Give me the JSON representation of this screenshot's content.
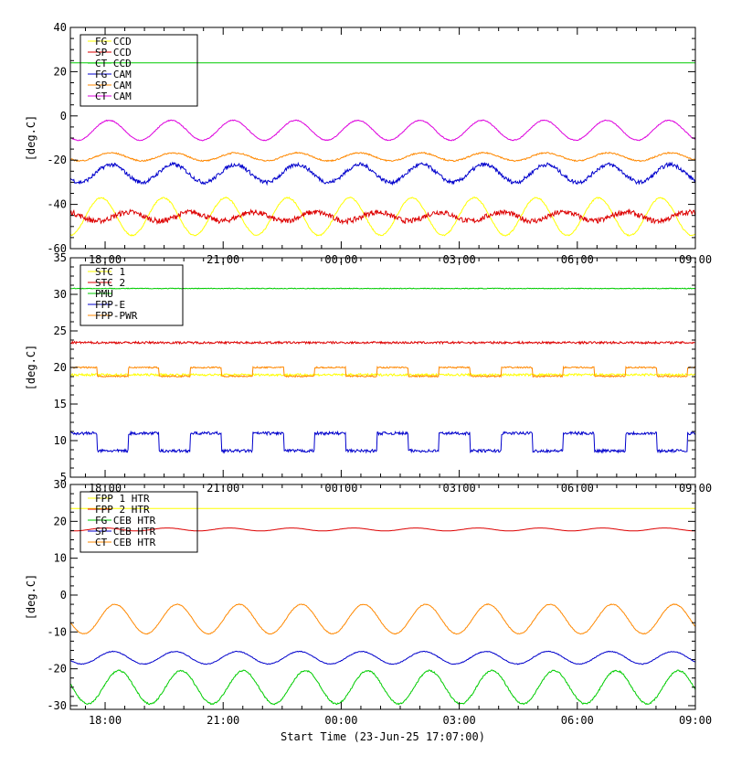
{
  "chart_data": [
    {
      "type": "line",
      "panel": "top",
      "ylabel": "[deg.C]",
      "ylim": [
        -60,
        40
      ],
      "y_ticks": [
        -60,
        -40,
        -20,
        0,
        20,
        40
      ],
      "y_tick_labels": [
        "-60",
        "-40",
        "-20",
        "0",
        "20",
        "40"
      ],
      "x_tick_labels": [
        "18:00",
        "21:00",
        "00:00",
        "03:00",
        "06:00",
        "09:00"
      ],
      "xlim_hours": [
        17.117,
        33.0
      ],
      "x_tick_hours": [
        18,
        21,
        24,
        27,
        30,
        33
      ],
      "grid": false,
      "legend_position": "top-left",
      "legend": [
        "FG CCD",
        "SP CCD",
        "CT CCD",
        "FG CAM",
        "SP CAM",
        "CT CAM"
      ],
      "series": [
        {
          "name": "FG CCD",
          "color": "#ffff00",
          "kind": "sine",
          "center": -45.5,
          "amplitude": 8.5,
          "period_hours": 1.58,
          "phase_hours": 17.9,
          "noise": 0.3
        },
        {
          "name": "SP CCD",
          "color": "#dd0000",
          "kind": "sine",
          "center": -45.5,
          "amplitude": 2.0,
          "period_hours": 1.58,
          "phase_hours": 18.6,
          "noise": 1.2
        },
        {
          "name": "CT CCD",
          "color": "#00cc00",
          "kind": "flat",
          "center": 24.0,
          "amplitude": 0,
          "period_hours": 1.58,
          "phase_hours": 0,
          "noise": 0
        },
        {
          "name": "FG CAM",
          "color": "#0000cc",
          "kind": "sine",
          "center": -26.0,
          "amplitude": 4.0,
          "period_hours": 1.58,
          "phase_hours": 18.15,
          "noise": 0.9
        },
        {
          "name": "SP CAM",
          "color": "#ff8800",
          "kind": "sine",
          "center": -18.5,
          "amplitude": 1.8,
          "period_hours": 1.58,
          "phase_hours": 18.15,
          "noise": 0.3
        },
        {
          "name": "CT CAM",
          "color": "#dd00dd",
          "kind": "sine",
          "center": -6.5,
          "amplitude": 4.5,
          "period_hours": 1.58,
          "phase_hours": 18.1,
          "noise": 0.2
        }
      ]
    },
    {
      "type": "line",
      "panel": "middle",
      "ylabel": "[deg.C]",
      "ylim": [
        5,
        35
      ],
      "y_ticks": [
        5,
        10,
        15,
        20,
        25,
        30,
        35
      ],
      "y_tick_labels": [
        "5",
        "10",
        "15",
        "20",
        "25",
        "30",
        "35"
      ],
      "x_tick_labels": [
        "18:00",
        "21:00",
        "00:00",
        "03:00",
        "06:00",
        "09:00"
      ],
      "xlim_hours": [
        17.117,
        33.0
      ],
      "x_tick_hours": [
        18,
        21,
        24,
        27,
        30,
        33
      ],
      "grid": false,
      "legend_position": "top-left",
      "legend": [
        "STC 1",
        "STC 2",
        "PMU",
        "FPP-E",
        "FPP-PWR"
      ],
      "series": [
        {
          "name": "STC 1",
          "color": "#ffff00",
          "kind": "flat",
          "center": 19.0,
          "amplitude": 0,
          "period_hours": 3.16,
          "phase_hours": 0,
          "noise": 0.15
        },
        {
          "name": "STC 2",
          "color": "#dd0000",
          "kind": "flat",
          "center": 23.4,
          "amplitude": 0,
          "period_hours": 3.16,
          "phase_hours": 0,
          "noise": 0.15
        },
        {
          "name": "PMU",
          "color": "#00cc00",
          "kind": "flat",
          "center": 30.8,
          "amplitude": 0,
          "period_hours": 3.16,
          "phase_hours": 0,
          "noise": 0.05
        },
        {
          "name": "FPP-E",
          "color": "#0000cc",
          "kind": "square",
          "center": 9.8,
          "amplitude": 1.2,
          "period_hours": 1.58,
          "phase_hours": 17.4,
          "noise": 0.2
        },
        {
          "name": "FPP-PWR",
          "color": "#ff8800",
          "kind": "square",
          "center": 19.4,
          "amplitude": 0.6,
          "period_hours": 1.58,
          "phase_hours": 17.4,
          "noise": 0.1
        }
      ]
    },
    {
      "type": "line",
      "panel": "bottom",
      "ylabel": "[deg.C]",
      "ylim": [
        -31,
        30
      ],
      "y_ticks": [
        -30,
        -20,
        -10,
        0,
        10,
        20,
        30
      ],
      "y_tick_labels": [
        "-30",
        "-20",
        "-10",
        "0",
        "10",
        "20",
        "30"
      ],
      "x_tick_labels": [
        "18:00",
        "21:00",
        "00:00",
        "03:00",
        "06:00",
        "09:00"
      ],
      "xlim_hours": [
        17.117,
        33.0
      ],
      "x_tick_hours": [
        18,
        21,
        24,
        27,
        30,
        33
      ],
      "grid": false,
      "legend_position": "top-left",
      "legend": [
        "FPP 1 HTR",
        "FPP 2 HTR",
        "FG CEB HTR",
        "SP CEB HTR",
        "CT CEB HTR"
      ],
      "xlabel": "Start Time (23-Jun-25 17:07:00)",
      "series": [
        {
          "name": "FPP 1 HTR",
          "color": "#ffff00",
          "kind": "flat",
          "center": 23.5,
          "amplitude": 0,
          "period_hours": 1.58,
          "phase_hours": 0,
          "noise": 0
        },
        {
          "name": "FPP 2 HTR",
          "color": "#dd0000",
          "kind": "flat",
          "center": 17.8,
          "amplitude": 0.4,
          "period_hours": 1.58,
          "phase_hours": 18.0,
          "noise": 0
        },
        {
          "name": "FG CEB HTR",
          "color": "#00cc00",
          "kind": "sine",
          "center": -25.0,
          "amplitude": 4.5,
          "period_hours": 1.58,
          "phase_hours": 18.35,
          "noise": 0.2
        },
        {
          "name": "SP CEB HTR",
          "color": "#0000cc",
          "kind": "sine",
          "center": -17.0,
          "amplitude": 1.7,
          "period_hours": 1.58,
          "phase_hours": 18.2,
          "noise": 0.1
        },
        {
          "name": "CT CEB HTR",
          "color": "#ff8800",
          "kind": "sine",
          "center": -6.5,
          "amplitude": 4.0,
          "period_hours": 1.58,
          "phase_hours": 18.25,
          "noise": 0.1
        }
      ]
    }
  ]
}
